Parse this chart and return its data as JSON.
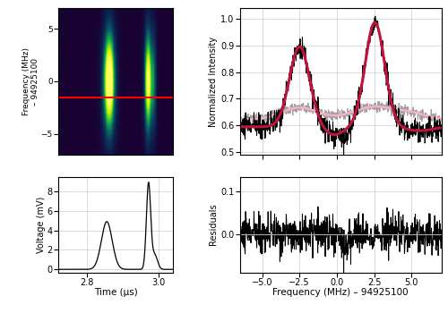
{
  "fig_width": 5.0,
  "fig_height": 3.5,
  "dpi": 100,
  "colormap_xlim": [
    2.7,
    3.05
  ],
  "colormap_ylim": [
    -7,
    7
  ],
  "colormap_ylabel": "Frequency (MHz)\n– 94925100",
  "colormap_yticks": [
    -5,
    0,
    5
  ],
  "voltage_xlim": [
    2.72,
    3.04
  ],
  "voltage_ylim": [
    -0.3,
    9.5
  ],
  "voltage_xlabel": "Time (µs)",
  "voltage_ylabel": "Voltage (mV)",
  "voltage_yticks": [
    0,
    2,
    4,
    6,
    8
  ],
  "voltage_xticks": [
    2.8,
    3.0
  ],
  "spec_xlim": [
    -6.5,
    7.0
  ],
  "spec_ylim": [
    0.49,
    1.04
  ],
  "spec_ylabel": "Normalized Intensity",
  "spec_yticks": [
    0.5,
    0.6,
    0.7,
    0.8,
    0.9,
    1.0
  ],
  "resid_xlim": [
    -6.5,
    7.0
  ],
  "resid_ylim": [
    -0.09,
    0.135
  ],
  "resid_ylabel": "Residuals",
  "resid_yticks": [
    0.0,
    0.1
  ],
  "resid_xlabel": "Frequency (MHz) – 94925100",
  "resid_xticks": [
    -5,
    -2.5,
    0,
    2.5,
    5
  ],
  "red_color": "#c0143c",
  "pink_color": "#ffb0c8",
  "gray_color": "#909090",
  "black_color": "#000000",
  "colormap_red_line_freq": -1.5,
  "background_color": "#ffffff"
}
